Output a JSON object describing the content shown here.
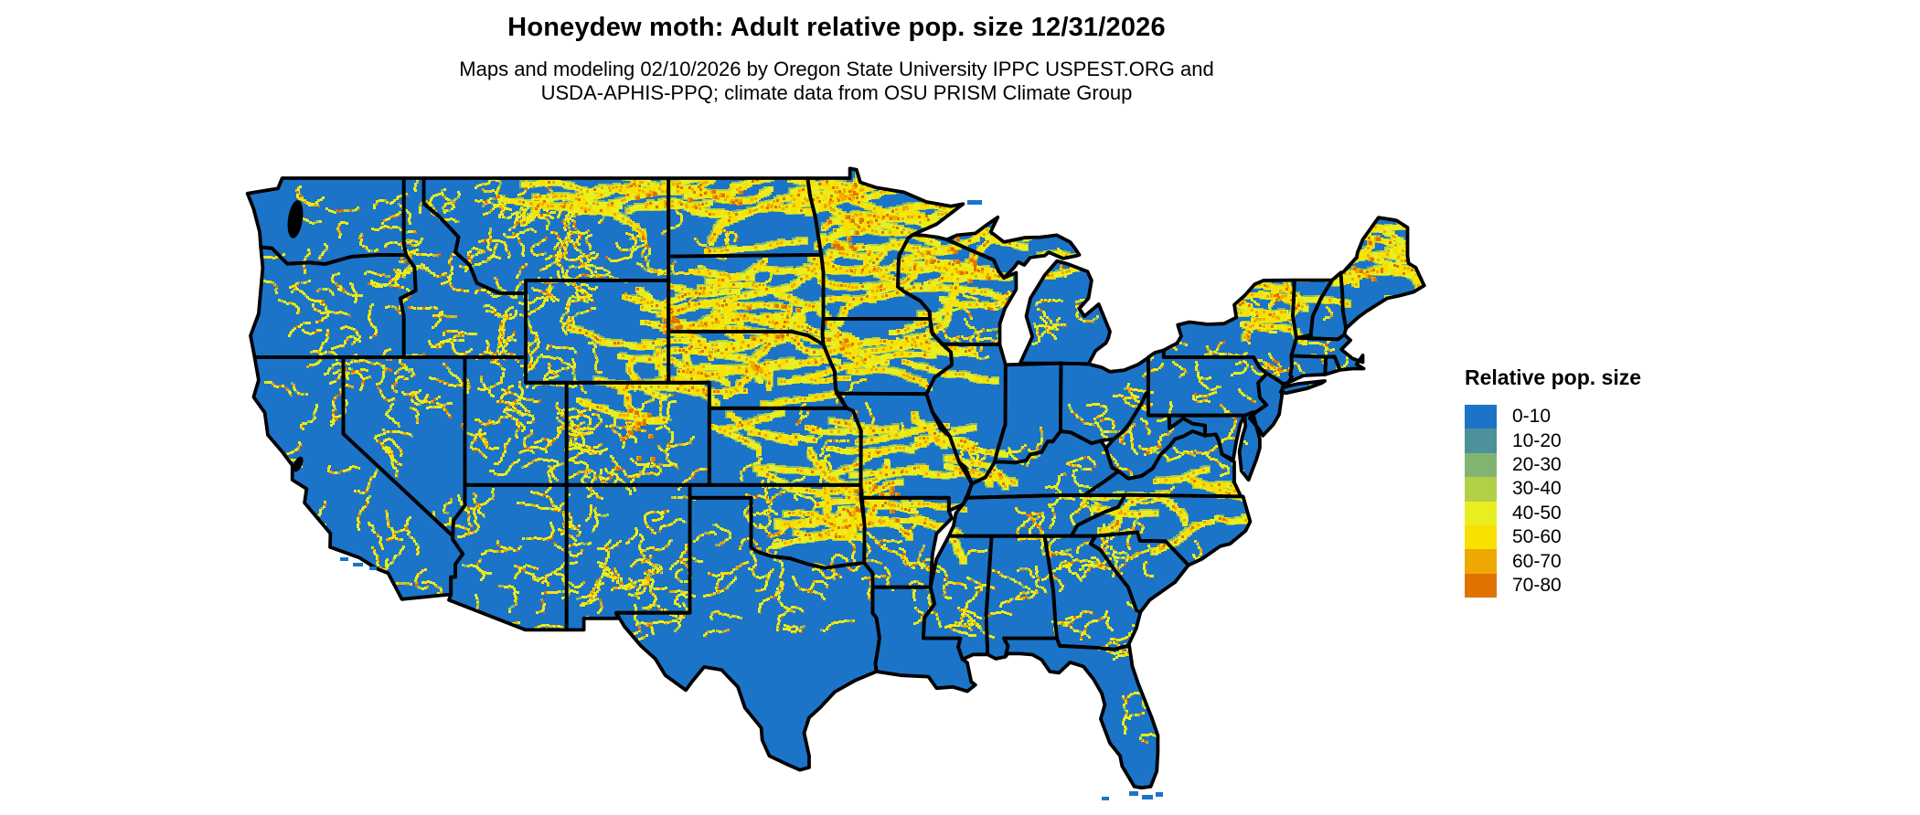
{
  "header": {
    "title": "Honeydew moth: Adult relative pop. size 12/31/2026",
    "subtitle_line1": "Maps and modeling 02/10/2026 by Oregon State University IPPC USPEST.ORG and",
    "subtitle_line2": "USDA-APHIS-PPQ; climate data from OSU PRISM Climate Group"
  },
  "legend": {
    "title": "Relative pop. size",
    "items": [
      {
        "label": "0-10",
        "color": "#1b74c8"
      },
      {
        "label": "10-20",
        "color": "#4d929b"
      },
      {
        "label": "20-30",
        "color": "#82b471"
      },
      {
        "label": "30-40",
        "color": "#b2d046"
      },
      {
        "label": "40-50",
        "color": "#e8ee20"
      },
      {
        "label": "50-60",
        "color": "#f8e000"
      },
      {
        "label": "60-70",
        "color": "#eda902"
      },
      {
        "label": "70-80",
        "color": "#e07200"
      }
    ]
  },
  "map": {
    "region": "Contiguous United States",
    "base_color": "#1b74c8",
    "border_color": "#000000",
    "background_color": "#ffffff"
  }
}
